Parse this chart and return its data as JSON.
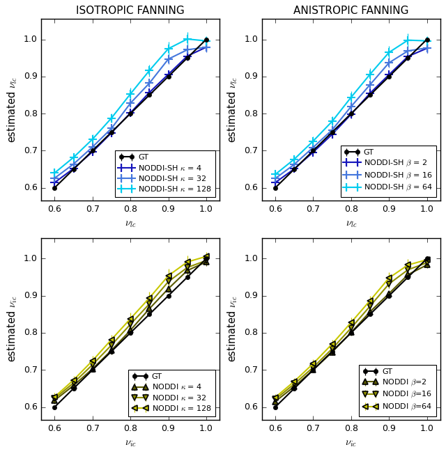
{
  "x_vals": [
    0.6,
    0.65,
    0.7,
    0.75,
    0.8,
    0.85,
    0.9,
    0.95,
    1.0
  ],
  "gt_y": [
    0.6,
    0.65,
    0.7,
    0.75,
    0.8,
    0.85,
    0.9,
    0.95,
    1.0
  ],
  "gt_yerr": [
    0.003,
    0.003,
    0.003,
    0.003,
    0.003,
    0.003,
    0.003,
    0.003,
    0.003
  ],
  "gt_color": "#000000",
  "gt_marker": "o",
  "gt_label": "GT",
  "top_left_title": "ISOTROPIC FANNING",
  "top_right_title": "ANISTROPIC FANNING",
  "top_left_series": [
    {
      "label": "NODDI-SH $\\kappa$ = 4",
      "color": "#1515BB",
      "marker": "+",
      "msize": 8,
      "mew": 1.5,
      "y": [
        0.614,
        0.652,
        0.697,
        0.748,
        0.802,
        0.857,
        0.906,
        0.955,
        0.979
      ],
      "yerr": [
        0.008,
        0.008,
        0.008,
        0.01,
        0.01,
        0.01,
        0.01,
        0.012,
        0.012
      ]
    },
    {
      "label": "NODDI-SH $\\kappa$ = 32",
      "color": "#4477DD",
      "marker": "+",
      "msize": 8,
      "mew": 1.5,
      "y": [
        0.626,
        0.664,
        0.71,
        0.76,
        0.828,
        0.882,
        0.947,
        0.972,
        0.979
      ],
      "yerr": [
        0.009,
        0.009,
        0.011,
        0.011,
        0.011,
        0.011,
        0.013,
        0.013,
        0.013
      ]
    },
    {
      "label": "NODDI-SH $\\kappa$ = 128",
      "color": "#00CCEE",
      "marker": "+",
      "msize": 8,
      "mew": 1.5,
      "y": [
        0.64,
        0.682,
        0.731,
        0.788,
        0.853,
        0.916,
        0.975,
        1.001,
        0.996
      ],
      "yerr": [
        0.011,
        0.011,
        0.013,
        0.013,
        0.016,
        0.016,
        0.018,
        0.018,
        0.013
      ]
    }
  ],
  "top_right_series": [
    {
      "label": "NODDI-SH $\\beta$ = 2",
      "color": "#1515BB",
      "marker": "+",
      "msize": 8,
      "mew": 1.5,
      "y": [
        0.614,
        0.651,
        0.696,
        0.744,
        0.798,
        0.855,
        0.905,
        0.954,
        0.976
      ],
      "yerr": [
        0.008,
        0.008,
        0.008,
        0.01,
        0.01,
        0.01,
        0.01,
        0.012,
        0.012
      ]
    },
    {
      "label": "NODDI-SH $\\beta$ = 16",
      "color": "#4477DD",
      "marker": "+",
      "msize": 8,
      "mew": 1.5,
      "y": [
        0.625,
        0.663,
        0.709,
        0.756,
        0.819,
        0.878,
        0.937,
        0.969,
        0.977
      ],
      "yerr": [
        0.009,
        0.009,
        0.011,
        0.011,
        0.011,
        0.011,
        0.013,
        0.013,
        0.013
      ]
    },
    {
      "label": "NODDI-SH $\\beta$ = 64",
      "color": "#00CCEE",
      "marker": "+",
      "msize": 8,
      "mew": 1.5,
      "y": [
        0.636,
        0.677,
        0.726,
        0.779,
        0.844,
        0.906,
        0.965,
        0.998,
        0.996
      ],
      "yerr": [
        0.011,
        0.011,
        0.013,
        0.013,
        0.016,
        0.016,
        0.018,
        0.018,
        0.013
      ]
    }
  ],
  "bottom_left_series": [
    {
      "label": "NODDI $\\kappa$ = 4",
      "color": "#5a5a00",
      "marker": "^",
      "msize": 6,
      "mew": 1.2,
      "y": [
        0.618,
        0.658,
        0.703,
        0.753,
        0.807,
        0.865,
        0.919,
        0.968,
        0.991
      ],
      "yerr": [
        0.009,
        0.009,
        0.009,
        0.011,
        0.011,
        0.011,
        0.011,
        0.013,
        0.01
      ]
    },
    {
      "label": "NODDI $\\kappa$ = 32",
      "color": "#909000",
      "marker": "v",
      "msize": 6,
      "mew": 1.2,
      "y": [
        0.623,
        0.665,
        0.714,
        0.767,
        0.823,
        0.878,
        0.938,
        0.976,
        0.995
      ],
      "yerr": [
        0.009,
        0.009,
        0.011,
        0.011,
        0.011,
        0.011,
        0.013,
        0.013,
        0.01
      ]
    },
    {
      "label": "NODDI $\\kappa$ = 128",
      "color": "#C8C800",
      "marker": "<",
      "msize": 6,
      "mew": 1.2,
      "y": [
        0.627,
        0.673,
        0.725,
        0.782,
        0.838,
        0.894,
        0.954,
        0.991,
        1.006
      ],
      "yerr": [
        0.011,
        0.011,
        0.013,
        0.013,
        0.016,
        0.016,
        0.018,
        0.018,
        0.011
      ]
    }
  ],
  "bottom_right_series": [
    {
      "label": "NODDI $\\beta$=2",
      "color": "#5a5a00",
      "marker": "^",
      "msize": 6,
      "mew": 1.2,
      "y": [
        0.615,
        0.655,
        0.7,
        0.748,
        0.801,
        0.857,
        0.906,
        0.957,
        0.983
      ],
      "yerr": [
        0.007,
        0.007,
        0.007,
        0.009,
        0.009,
        0.009,
        0.009,
        0.011,
        0.009
      ]
    },
    {
      "label": "NODDI $\\beta$=16",
      "color": "#909000",
      "marker": "v",
      "msize": 6,
      "mew": 1.2,
      "y": [
        0.621,
        0.662,
        0.707,
        0.757,
        0.813,
        0.872,
        0.932,
        0.97,
        0.989
      ],
      "yerr": [
        0.007,
        0.007,
        0.009,
        0.009,
        0.009,
        0.009,
        0.011,
        0.011,
        0.009
      ]
    },
    {
      "label": "NODDI $\\beta$=64",
      "color": "#C8C800",
      "marker": "<",
      "msize": 6,
      "mew": 1.2,
      "y": [
        0.626,
        0.669,
        0.717,
        0.77,
        0.828,
        0.887,
        0.948,
        0.983,
        0.997
      ],
      "yerr": [
        0.009,
        0.009,
        0.011,
        0.011,
        0.013,
        0.013,
        0.016,
        0.016,
        0.009
      ]
    }
  ],
  "top_xlabel": "$\\nu_{lc}$",
  "top_ylabel": "estimated $\\nu_{lc}$",
  "bottom_xlabel": "$\\nu_{ic}$",
  "bottom_ylabel": "estimated $\\nu_{ic}$",
  "xlim": [
    0.565,
    1.035
  ],
  "ylim": [
    0.565,
    1.055
  ],
  "xticks": [
    0.6,
    0.7,
    0.8,
    0.9,
    1.0
  ],
  "yticks": [
    0.6,
    0.7,
    0.8,
    0.9,
    1.0
  ],
  "figsize": [
    6.4,
    6.52
  ],
  "dpi": 100
}
